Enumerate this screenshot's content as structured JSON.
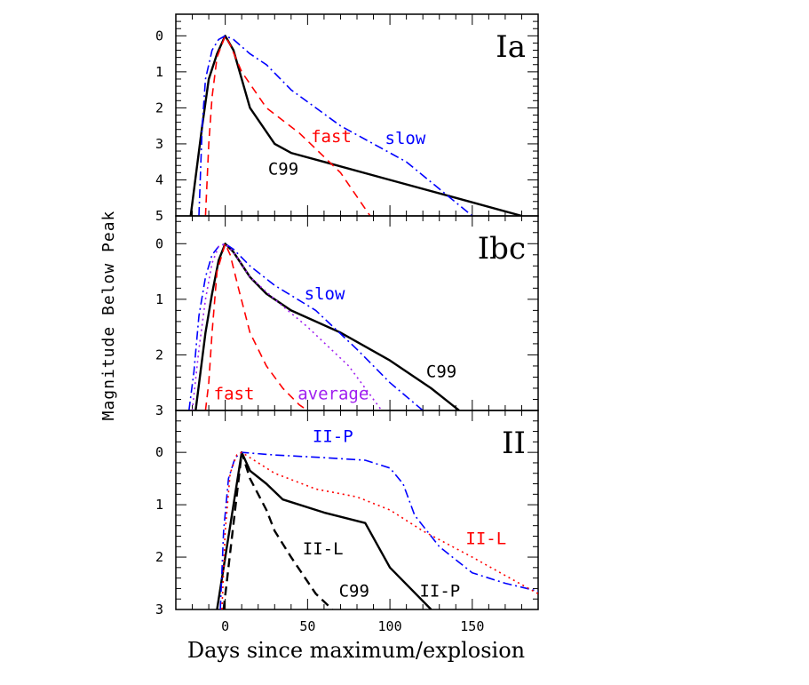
{
  "chart_data": {
    "type": "line",
    "ylabel": "Magnitude Below Peak",
    "xlabel": "Days since maximum/explosion",
    "xlim": [
      -30,
      190
    ],
    "x_ticks": [
      0,
      50,
      100,
      150
    ],
    "x_tick_labels": [
      "0",
      "50",
      "100",
      "150"
    ],
    "panels": [
      {
        "label": "Ia",
        "ylim": [
          5,
          -0.6
        ],
        "y_ticks": [
          0,
          1,
          2,
          3,
          4,
          5
        ],
        "y_tick_labels": [
          "0",
          "1",
          "2",
          "3",
          "4",
          "5"
        ],
        "series": [
          {
            "color": "#000000",
            "dash": "solid",
            "x": [
              -21,
              -14,
              -10,
              -5,
              0,
              5,
              15,
              30,
              40,
              60,
              100,
              140,
              180
            ],
            "y": [
              5,
              2.5,
              1.2,
              0.5,
              0,
              0.4,
              2.0,
              3.0,
              3.25,
              3.5,
              4.0,
              4.5,
              5.0
            ]
          },
          {
            "color": "#ff0000",
            "dash": "dashed",
            "x": [
              -12,
              -10,
              -8,
              -5,
              0,
              3,
              10,
              25,
              45,
              70,
              88
            ],
            "y": [
              5,
              3,
              1.7,
              0.6,
              0,
              0.25,
              1.0,
              2.0,
              2.7,
              3.8,
              5.0
            ]
          },
          {
            "color": "#0000ff",
            "dash": "dashdot",
            "x": [
              -16,
              -14,
              -12,
              -8,
              -4,
              0,
              5,
              15,
              25,
              40,
              70,
              110,
              150
            ],
            "y": [
              5,
              2.5,
              1.2,
              0.4,
              0.1,
              0,
              0.1,
              0.5,
              0.8,
              1.5,
              2.5,
              3.5,
              5.0
            ]
          }
        ],
        "annotations": [
          {
            "text": "fast",
            "color": "#ff0000",
            "x": 52,
            "y": 2.95
          },
          {
            "text": "slow",
            "color": "#0000ff",
            "x": 97,
            "y": 3.0
          },
          {
            "text": "C99",
            "color": "#000000",
            "x": 26,
            "y": 3.85
          }
        ]
      },
      {
        "label": "Ibc",
        "ylim": [
          3,
          -0.5
        ],
        "y_ticks": [
          0,
          1,
          2,
          3
        ],
        "y_tick_labels": [
          "0",
          "1",
          "2",
          "3"
        ],
        "series": [
          {
            "color": "#000000",
            "dash": "solid",
            "x": [
              -18,
              -12,
              -8,
              -4,
              0,
              5,
              15,
              25,
              40,
              70,
              100,
              125,
              142
            ],
            "y": [
              3,
              1.6,
              0.9,
              0.3,
              0,
              0.15,
              0.6,
              0.9,
              1.2,
              1.6,
              2.1,
              2.6,
              3.0
            ]
          },
          {
            "color": "#ff0000",
            "dash": "dashed",
            "x": [
              -12,
              -10,
              -8,
              -5,
              0,
              3,
              8,
              15,
              25,
              35,
              45,
              50
            ],
            "y": [
              3,
              2.5,
              1.6,
              0.5,
              0,
              0.2,
              0.8,
              1.6,
              2.2,
              2.6,
              2.9,
              3.0
            ]
          },
          {
            "color": "#0000ff",
            "dash": "dashdot",
            "x": [
              -22,
              -19,
              -16,
              -12,
              -8,
              -4,
              0,
              5,
              15,
              30,
              55,
              80,
              100,
              120
            ],
            "y": [
              3,
              2.3,
              1.3,
              0.6,
              0.2,
              0.05,
              0,
              0.1,
              0.4,
              0.75,
              1.2,
              1.9,
              2.5,
              3.0
            ]
          },
          {
            "color": "#a020f0",
            "dash": "dotted",
            "x": [
              -20,
              -16,
              -12,
              -8,
              -4,
              0,
              5,
              15,
              30,
              50,
              75,
              95
            ],
            "y": [
              3,
              1.9,
              1.0,
              0.35,
              0.05,
              0,
              0.15,
              0.6,
              1.0,
              1.5,
              2.2,
              3.0
            ]
          }
        ],
        "annotations": [
          {
            "text": "slow",
            "color": "#0000ff",
            "x": 48,
            "y": 1.0
          },
          {
            "text": "C99",
            "color": "#000000",
            "x": 122,
            "y": 2.4
          },
          {
            "text": "fast",
            "color": "#ff0000",
            "x": -7,
            "y": 2.8
          },
          {
            "text": "average",
            "color": "#a020f0",
            "x": 44,
            "y": 2.8
          }
        ]
      },
      {
        "label": "II",
        "ylim": [
          3,
          -0.8
        ],
        "y_ticks": [
          0,
          1,
          2,
          3
        ],
        "y_tick_labels": [
          "0",
          "1",
          "2",
          "3"
        ],
        "series": [
          {
            "color": "#000000",
            "dash": "solid",
            "x": [
              -5,
              10,
              15,
              25,
              35,
              60,
              85,
              100,
              125
            ],
            "y": [
              3,
              0,
              0.35,
              0.6,
              0.9,
              1.15,
              1.35,
              2.2,
              3.0
            ]
          },
          {
            "color": "#000000",
            "dash": "longdash",
            "x": [
              -1,
              10,
              15,
              25,
              30,
              40,
              55,
              65
            ],
            "y": [
              3,
              0,
              0.5,
              1.1,
              1.5,
              2.0,
              2.7,
              3.0
            ]
          },
          {
            "color": "#0000ff",
            "dash": "dashdot",
            "x": [
              -3,
              -1,
              2,
              6,
              10,
              30,
              60,
              85,
              100,
              108,
              115,
              130,
              150,
              170,
              190
            ],
            "y": [
              3,
              1.5,
              0.5,
              0.1,
              0,
              0.05,
              0.1,
              0.15,
              0.3,
              0.6,
              1.2,
              1.8,
              2.3,
              2.5,
              2.65
            ]
          },
          {
            "color": "#ff0000",
            "dash": "dotted",
            "x": [
              -2,
              0,
              3,
              7,
              10,
              30,
              55,
              80,
              100,
              120,
              150,
              190
            ],
            "y": [
              3,
              1.5,
              0.4,
              0.05,
              0,
              0.4,
              0.7,
              0.85,
              1.1,
              1.5,
              2.0,
              2.7
            ]
          }
        ],
        "annotations": [
          {
            "text": "II-P",
            "color": "#0000ff",
            "x": 53,
            "y": -0.2
          },
          {
            "text": "II-L",
            "color": "#ff0000",
            "x": 146,
            "y": 1.75
          },
          {
            "text": "II-L",
            "color": "#000000",
            "x": 47,
            "y": 1.95
          },
          {
            "text": "C99",
            "color": "#000000",
            "x": 69,
            "y": 2.75
          },
          {
            "text": "II-P",
            "color": "#000000",
            "x": 118,
            "y": 2.75
          }
        ]
      }
    ]
  }
}
